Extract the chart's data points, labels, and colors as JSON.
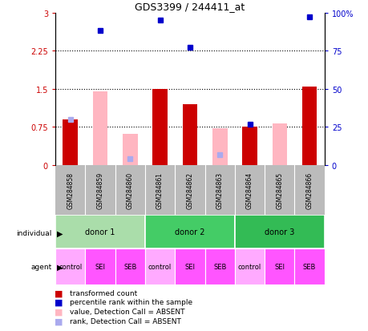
{
  "title": "GDS3399 / 244411_at",
  "samples": [
    "GSM284858",
    "GSM284859",
    "GSM284860",
    "GSM284861",
    "GSM284862",
    "GSM284863",
    "GSM284864",
    "GSM284865",
    "GSM284866"
  ],
  "red_bars": [
    0.9,
    0.0,
    0.0,
    1.5,
    1.2,
    0.0,
    0.75,
    0.0,
    1.55
  ],
  "pink_bars": [
    0.9,
    1.45,
    0.62,
    0.0,
    0.0,
    0.72,
    0.0,
    0.82,
    0.0
  ],
  "blue_squares": [
    null,
    88,
    null,
    95,
    77,
    null,
    27,
    null,
    97
  ],
  "lightblue_squares": [
    30,
    null,
    4,
    null,
    null,
    7,
    null,
    null,
    null
  ],
  "ylim_left": [
    0,
    3
  ],
  "ylim_right": [
    0,
    100
  ],
  "yticks_left": [
    0,
    0.75,
    1.5,
    2.25,
    3.0
  ],
  "ytick_labels_left": [
    "0",
    "0.75",
    "1.5",
    "2.25",
    "3"
  ],
  "yticks_right": [
    0,
    25,
    50,
    75,
    100
  ],
  "ytick_labels_right": [
    "0",
    "25",
    "50",
    "75",
    "100%"
  ],
  "hlines": [
    0.75,
    1.5,
    2.25
  ],
  "donors": [
    {
      "label": "donor 1",
      "start": 0,
      "end": 3,
      "color": "#AADDAA"
    },
    {
      "label": "donor 2",
      "start": 3,
      "end": 6,
      "color": "#44CC66"
    },
    {
      "label": "donor 3",
      "start": 6,
      "end": 9,
      "color": "#33BB55"
    }
  ],
  "agents": [
    "control",
    "SEI",
    "SEB",
    "control",
    "SEI",
    "SEB",
    "control",
    "SEI",
    "SEB"
  ],
  "agent_colors": [
    "#FFAAFF",
    "#FF55FF",
    "#FF55FF",
    "#FFAAFF",
    "#FF55FF",
    "#FF55FF",
    "#FFAAFF",
    "#FF55FF",
    "#FF55FF"
  ],
  "bg_color": "#ffffff",
  "bar_width": 0.5,
  "red_color": "#CC0000",
  "pink_color": "#FFB6C1",
  "blue_color": "#0000CC",
  "lightblue_color": "#AAAAEE",
  "left_axis_color": "#CC0000",
  "right_axis_color": "#0000CC",
  "gsm_bg": "#BBBBBB",
  "legend_items": [
    {
      "color": "#CC0000",
      "label": "transformed count"
    },
    {
      "color": "#0000CC",
      "label": "percentile rank within the sample"
    },
    {
      "color": "#FFB6C1",
      "label": "value, Detection Call = ABSENT"
    },
    {
      "color": "#AAAAEE",
      "label": "rank, Detection Call = ABSENT"
    }
  ]
}
